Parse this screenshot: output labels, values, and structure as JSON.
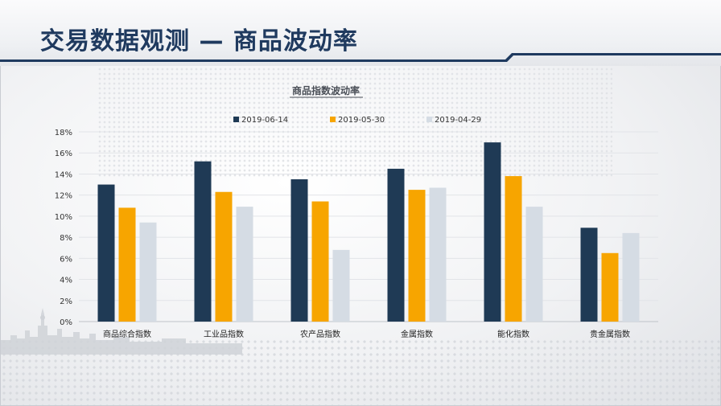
{
  "page": {
    "title": "交易数据观测 — 商品波动率"
  },
  "chart_data": {
    "type": "bar",
    "title": "商品指数波动率",
    "categories": [
      "商品综合指数",
      "工业品指数",
      "农产品指数",
      "金属指数",
      "能化指数",
      "贵金属指数"
    ],
    "series": [
      {
        "name": "2019-06-14",
        "color": "#1f3a55",
        "values": [
          13.0,
          15.2,
          13.5,
          14.5,
          17.0,
          8.9
        ]
      },
      {
        "name": "2019-05-30",
        "color": "#f7a500",
        "values": [
          10.8,
          12.3,
          11.4,
          12.5,
          13.8,
          6.5
        ]
      },
      {
        "name": "2019-04-29",
        "color": "#d5dce4",
        "values": [
          9.4,
          10.9,
          6.8,
          12.7,
          10.9,
          8.4
        ]
      }
    ],
    "ylim": [
      0,
      18
    ],
    "yticks": [
      "0%",
      "2%",
      "4%",
      "6%",
      "8%",
      "10%",
      "12%",
      "14%",
      "16%",
      "18%"
    ],
    "grid": true,
    "legend": "top-center"
  }
}
